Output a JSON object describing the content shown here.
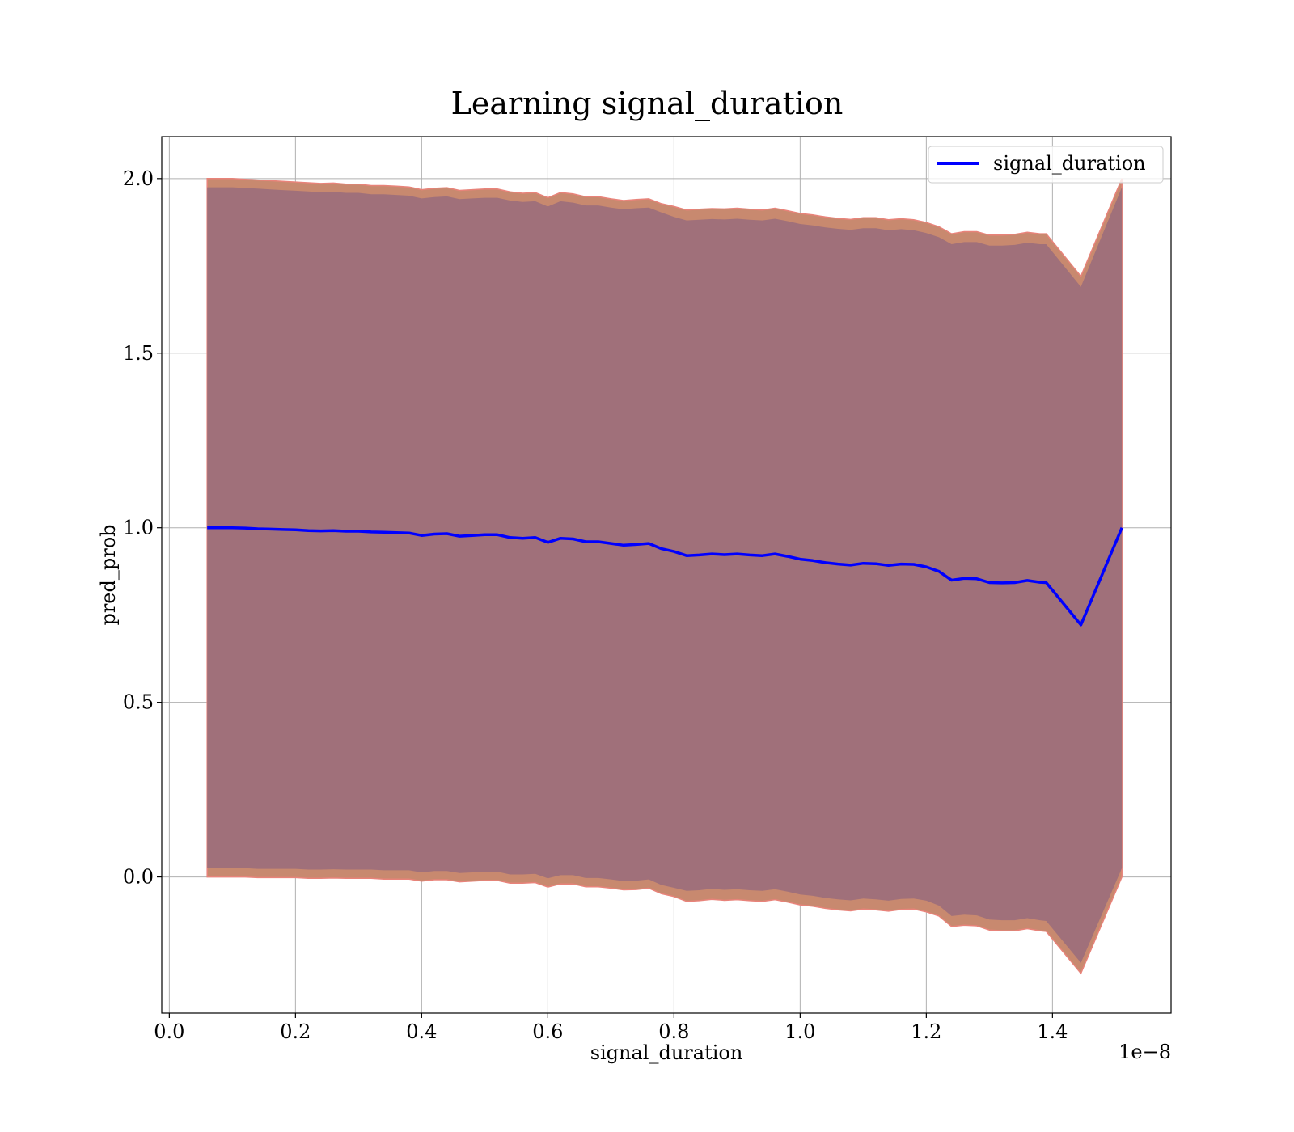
{
  "chart_data": {
    "type": "area",
    "title": "Learning signal_duration",
    "xlabel": "signal_duration",
    "ylabel": "pred_prob",
    "x_offset_label": "1e−8",
    "xlim": [
      -0.012,
      1.588
    ],
    "ylim": [
      -0.39,
      2.12
    ],
    "xticks": [
      0.0,
      0.2,
      0.4,
      0.6,
      0.8,
      1.0,
      1.2,
      1.4
    ],
    "xtick_labels": [
      "0.0",
      "0.2",
      "0.4",
      "0.6",
      "0.8",
      "1.0",
      "1.2",
      "1.4"
    ],
    "yticks": [
      0.0,
      0.5,
      1.0,
      1.5,
      2.0
    ],
    "ytick_labels": [
      "0.0",
      "0.5",
      "1.0",
      "1.5",
      "2.0"
    ],
    "grid": true,
    "legend": {
      "position": "top-right",
      "entries": [
        "signal_duration"
      ]
    },
    "colors": {
      "line": "#0000ff",
      "outer_band": "#c8896f",
      "outer_band_edge": "#e8837a",
      "inner_band": "#a0707a"
    },
    "series": [
      {
        "name": "signal_duration",
        "x": [
          0.06,
          0.08,
          0.1,
          0.12,
          0.14,
          0.16,
          0.18,
          0.2,
          0.22,
          0.24,
          0.26,
          0.28,
          0.3,
          0.32,
          0.34,
          0.36,
          0.38,
          0.4,
          0.42,
          0.44,
          0.46,
          0.48,
          0.5,
          0.52,
          0.54,
          0.56,
          0.58,
          0.6,
          0.62,
          0.64,
          0.66,
          0.68,
          0.7,
          0.72,
          0.74,
          0.76,
          0.78,
          0.8,
          0.82,
          0.84,
          0.86,
          0.88,
          0.9,
          0.92,
          0.94,
          0.96,
          0.98,
          1.0,
          1.02,
          1.04,
          1.06,
          1.08,
          1.1,
          1.12,
          1.14,
          1.16,
          1.18,
          1.2,
          1.22,
          1.24,
          1.26,
          1.28,
          1.3,
          1.32,
          1.34,
          1.36,
          1.38,
          1.39,
          1.445,
          1.51
        ],
        "y": [
          1.0,
          1.0,
          1.0,
          0.999,
          0.997,
          0.996,
          0.995,
          0.994,
          0.992,
          0.991,
          0.992,
          0.99,
          0.99,
          0.988,
          0.987,
          0.986,
          0.985,
          0.978,
          0.982,
          0.983,
          0.976,
          0.978,
          0.98,
          0.98,
          0.972,
          0.97,
          0.972,
          0.958,
          0.97,
          0.968,
          0.96,
          0.96,
          0.955,
          0.95,
          0.952,
          0.955,
          0.94,
          0.932,
          0.92,
          0.922,
          0.925,
          0.923,
          0.925,
          0.922,
          0.92,
          0.925,
          0.918,
          0.91,
          0.906,
          0.9,
          0.896,
          0.893,
          0.898,
          0.897,
          0.892,
          0.896,
          0.895,
          0.888,
          0.875,
          0.85,
          0.855,
          0.854,
          0.843,
          0.842,
          0.843,
          0.849,
          0.844,
          0.843,
          0.722,
          1.0
        ],
        "upper_outer": [
          2.0,
          2.0,
          2.0,
          1.998,
          1.996,
          1.994,
          1.992,
          1.99,
          1.988,
          1.986,
          1.987,
          1.984,
          1.984,
          1.98,
          1.98,
          1.978,
          1.976,
          1.968,
          1.972,
          1.974,
          1.966,
          1.968,
          1.97,
          1.97,
          1.962,
          1.958,
          1.96,
          1.945,
          1.96,
          1.956,
          1.948,
          1.948,
          1.942,
          1.937,
          1.94,
          1.942,
          1.928,
          1.92,
          1.91,
          1.912,
          1.914,
          1.913,
          1.915,
          1.912,
          1.91,
          1.915,
          1.908,
          1.9,
          1.896,
          1.89,
          1.886,
          1.883,
          1.888,
          1.888,
          1.882,
          1.885,
          1.882,
          1.874,
          1.862,
          1.842,
          1.848,
          1.848,
          1.838,
          1.838,
          1.84,
          1.846,
          1.842,
          1.842,
          1.72,
          2.0
        ],
        "upper_inner": [
          1.975,
          1.975,
          1.975,
          1.973,
          1.971,
          1.969,
          1.967,
          1.965,
          1.963,
          1.961,
          1.962,
          1.959,
          1.959,
          1.955,
          1.955,
          1.953,
          1.951,
          1.943,
          1.947,
          1.949,
          1.941,
          1.943,
          1.945,
          1.945,
          1.937,
          1.933,
          1.935,
          1.92,
          1.935,
          1.931,
          1.923,
          1.923,
          1.917,
          1.912,
          1.915,
          1.917,
          1.903,
          1.89,
          1.88,
          1.882,
          1.884,
          1.883,
          1.885,
          1.882,
          1.88,
          1.885,
          1.878,
          1.87,
          1.866,
          1.86,
          1.856,
          1.853,
          1.858,
          1.858,
          1.852,
          1.855,
          1.852,
          1.844,
          1.832,
          1.812,
          1.818,
          1.818,
          1.808,
          1.808,
          1.81,
          1.816,
          1.812,
          1.812,
          1.69,
          1.975
        ],
        "lower_inner": [
          0.025,
          0.025,
          0.025,
          0.025,
          0.023,
          0.023,
          0.023,
          0.023,
          0.021,
          0.021,
          0.022,
          0.021,
          0.021,
          0.021,
          0.019,
          0.019,
          0.019,
          0.013,
          0.017,
          0.017,
          0.011,
          0.013,
          0.015,
          0.015,
          0.007,
          0.007,
          0.009,
          -0.004,
          0.005,
          0.005,
          -0.003,
          -0.003,
          -0.007,
          -0.012,
          -0.011,
          -0.007,
          -0.023,
          -0.031,
          -0.04,
          -0.038,
          -0.034,
          -0.037,
          -0.035,
          -0.038,
          -0.04,
          -0.035,
          -0.042,
          -0.05,
          -0.054,
          -0.06,
          -0.064,
          -0.067,
          -0.062,
          -0.064,
          -0.068,
          -0.063,
          -0.062,
          -0.068,
          -0.082,
          -0.112,
          -0.108,
          -0.11,
          -0.122,
          -0.124,
          -0.124,
          -0.118,
          -0.124,
          -0.126,
          -0.246,
          0.025
        ],
        "lower_outer": [
          0.0,
          0.0,
          0.0,
          0.0,
          -0.002,
          -0.002,
          -0.002,
          -0.002,
          -0.004,
          -0.004,
          -0.003,
          -0.004,
          -0.004,
          -0.004,
          -0.006,
          -0.006,
          -0.006,
          -0.012,
          -0.008,
          -0.008,
          -0.014,
          -0.012,
          -0.01,
          -0.01,
          -0.018,
          -0.018,
          -0.016,
          -0.029,
          -0.02,
          -0.02,
          -0.028,
          -0.028,
          -0.032,
          -0.037,
          -0.036,
          -0.032,
          -0.048,
          -0.056,
          -0.07,
          -0.068,
          -0.064,
          -0.067,
          -0.065,
          -0.068,
          -0.07,
          -0.065,
          -0.072,
          -0.08,
          -0.084,
          -0.09,
          -0.094,
          -0.097,
          -0.092,
          -0.094,
          -0.098,
          -0.093,
          -0.092,
          -0.1,
          -0.112,
          -0.142,
          -0.138,
          -0.14,
          -0.152,
          -0.154,
          -0.154,
          -0.148,
          -0.154,
          -0.156,
          -0.276,
          0.0
        ]
      }
    ]
  }
}
